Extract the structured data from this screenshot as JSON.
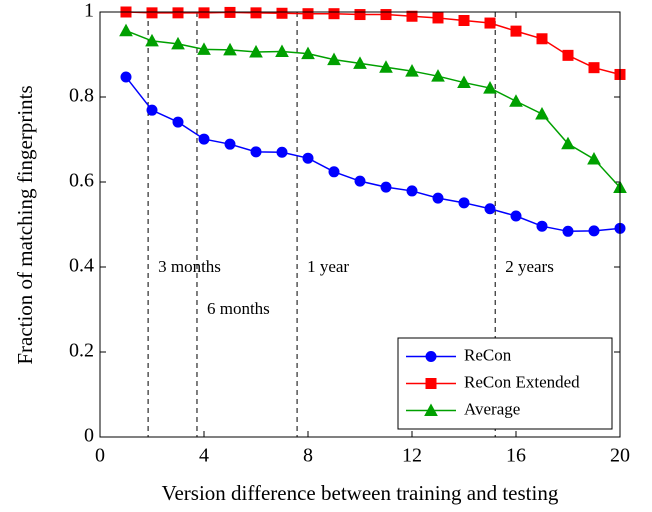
{
  "chart_data": {
    "type": "line",
    "xlabel": "Version difference between training and testing",
    "ylabel": "Fraction of matching fingerprints",
    "x": [
      1,
      2,
      3,
      4,
      5,
      6,
      7,
      8,
      9,
      10,
      11,
      12,
      13,
      14,
      15,
      16,
      17,
      18,
      19,
      20
    ],
    "series": [
      {
        "name": "ReCon",
        "color": "#0000ff",
        "marker": "circle",
        "values": [
          0.847,
          0.769,
          0.741,
          0.701,
          0.689,
          0.671,
          0.67,
          0.656,
          0.624,
          0.602,
          0.588,
          0.579,
          0.562,
          0.551,
          0.537,
          0.52,
          0.496,
          0.484,
          0.485,
          0.491
        ]
      },
      {
        "name": "ReCon Extended",
        "color": "#ff0000",
        "marker": "square",
        "values": [
          1.0,
          0.998,
          0.998,
          0.998,
          0.999,
          0.998,
          0.997,
          0.996,
          0.996,
          0.994,
          0.994,
          0.99,
          0.986,
          0.98,
          0.974,
          0.955,
          0.937,
          0.898,
          0.869,
          0.853
        ]
      },
      {
        "name": "Average",
        "color": "#00a000",
        "marker": "triangle",
        "values": [
          0.956,
          0.932,
          0.925,
          0.912,
          0.911,
          0.906,
          0.907,
          0.902,
          0.888,
          0.879,
          0.87,
          0.861,
          0.849,
          0.834,
          0.821,
          0.79,
          0.76,
          0.69,
          0.654,
          0.587
        ]
      }
    ],
    "annotations": [
      {
        "text": "3 months",
        "x": 1.85
      },
      {
        "text": "6 months",
        "x": 3.73
      },
      {
        "text": "1 year",
        "x": 7.58
      },
      {
        "text": "2 years",
        "x": 15.2
      }
    ],
    "xlim": [
      0,
      20
    ],
    "xticks": [
      0,
      4,
      8,
      12,
      16,
      20
    ],
    "ylim": [
      0,
      1
    ],
    "yticks": [
      0,
      0.2,
      0.4,
      0.6,
      0.8,
      1
    ],
    "legend": "lower right"
  }
}
